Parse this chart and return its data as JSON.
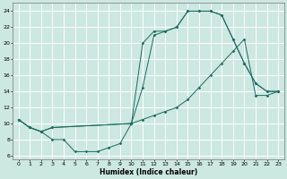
{
  "xlabel": "Humidex (Indice chaleur)",
  "bg_color": "#cce8e0",
  "grid_color": "#ffffff",
  "line_color": "#1a6b5e",
  "xlim": [
    -0.5,
    23.5
  ],
  "ylim": [
    5.5,
    25.0
  ],
  "yticks": [
    6,
    8,
    10,
    12,
    14,
    16,
    18,
    20,
    22,
    24
  ],
  "xticks": [
    0,
    1,
    2,
    3,
    4,
    5,
    6,
    7,
    8,
    9,
    10,
    11,
    12,
    13,
    14,
    15,
    16,
    17,
    18,
    19,
    20,
    21,
    22,
    23
  ],
  "line1_x": [
    0,
    1,
    2,
    3,
    10,
    11,
    12,
    13,
    14,
    15,
    16,
    17,
    18,
    19,
    20,
    21,
    22,
    23
  ],
  "line1_y": [
    10.5,
    9.5,
    9.0,
    9.5,
    10.0,
    20.0,
    21.5,
    21.5,
    22.0,
    24.0,
    24.0,
    24.0,
    23.5,
    20.5,
    17.5,
    15.0,
    14.0,
    14.0
  ],
  "line2_x": [
    0,
    1,
    2,
    3,
    10,
    11,
    12,
    13,
    14,
    15,
    16,
    17,
    18,
    19,
    20,
    21,
    22,
    23
  ],
  "line2_y": [
    10.5,
    9.5,
    9.0,
    9.5,
    10.0,
    14.5,
    21.0,
    21.5,
    22.0,
    24.0,
    24.0,
    24.0,
    23.5,
    20.5,
    17.5,
    15.0,
    14.0,
    14.0
  ],
  "line3_x": [
    0,
    1,
    2,
    3,
    4,
    5,
    6,
    7,
    8,
    9,
    10,
    11,
    12,
    13,
    14,
    15,
    16,
    17,
    18,
    19,
    20,
    21,
    22,
    23
  ],
  "line3_y": [
    10.5,
    9.5,
    9.0,
    8.0,
    8.0,
    6.5,
    6.5,
    6.5,
    7.0,
    7.5,
    10.0,
    10.5,
    11.0,
    11.5,
    12.0,
    13.0,
    14.5,
    16.0,
    17.5,
    19.0,
    20.5,
    13.5,
    13.5,
    14.0
  ]
}
